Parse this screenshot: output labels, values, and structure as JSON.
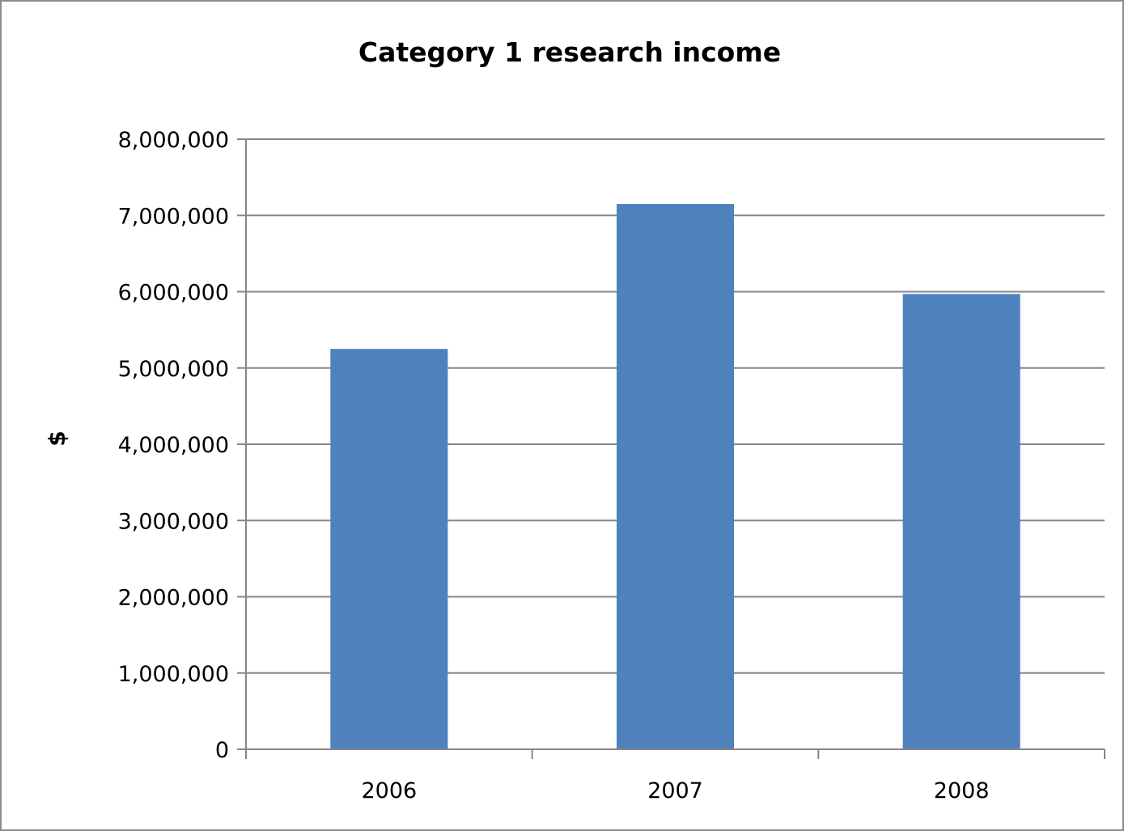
{
  "chart_data": {
    "type": "bar",
    "title": "Category 1 research income",
    "xlabel": "",
    "ylabel": "$",
    "categories": [
      "2006",
      "2007",
      "2008"
    ],
    "values": [
      5250000,
      7150000,
      5970000
    ],
    "ylim": [
      0,
      8000000
    ],
    "yticks": [
      0,
      1000000,
      2000000,
      3000000,
      4000000,
      5000000,
      6000000,
      7000000,
      8000000
    ],
    "ytick_labels": [
      "0",
      "1,000,000",
      "2,000,000",
      "3,000,000",
      "4,000,000",
      "5,000,000",
      "6,000,000",
      "7,000,000",
      "8,000,000"
    ],
    "grid": true,
    "legend": "none",
    "bar_color": "#4f81bd",
    "gridline_color": "#868686",
    "axis_color": "#868686"
  }
}
